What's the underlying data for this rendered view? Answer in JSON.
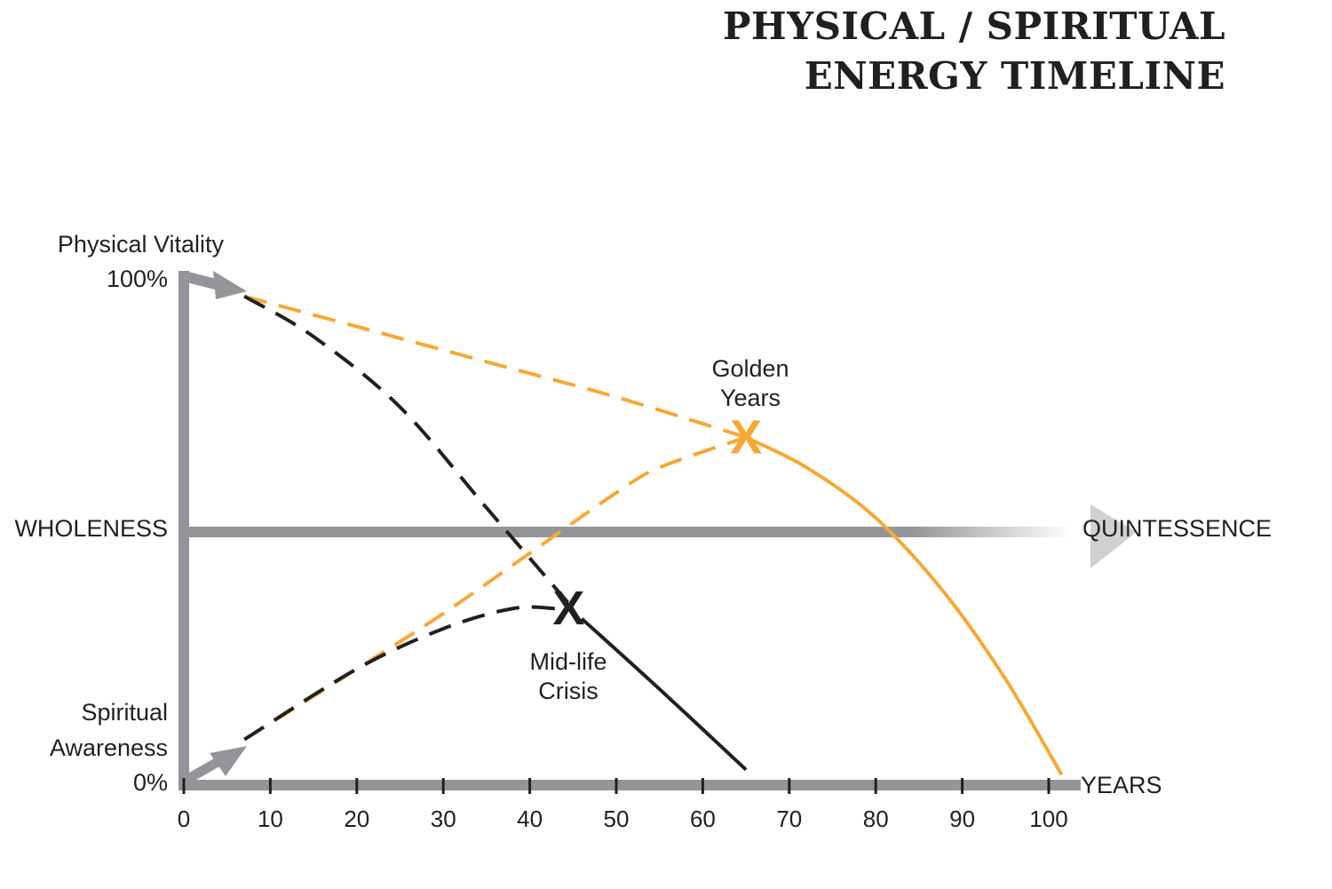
{
  "title_line1": "PHYSICAL / SPIRITUAL",
  "title_line2": "ENERGY TIMELINE",
  "chart_data": {
    "type": "line",
    "title": "PHYSICAL / SPIRITUAL ENERGY TIMELINE",
    "xlabel": "YEARS",
    "xlim": [
      0,
      100
    ],
    "ylim": [
      0,
      100
    ],
    "x_ticks": [
      0,
      10,
      20,
      30,
      40,
      50,
      60,
      70,
      80,
      90,
      100
    ],
    "y_top_label_line1": "Physical Vitality",
    "y_top_label_line2": "100%",
    "y_bottom_label_line1": "Spiritual",
    "y_bottom_label_line2": "Awareness",
    "y_bottom_label_line3": "0%",
    "midline_left_label": "WHOLENESS",
    "midline_right_label": "QUINTESSENCE",
    "midline_y": 50,
    "colors": {
      "axis": "#939598",
      "gold": "#f7a833",
      "dark": "#231f20"
    },
    "series": [
      {
        "name": "Physical vitality (ideal)",
        "color": "#f7a833",
        "style": "dashed",
        "x": [
          7,
          20,
          35,
          50,
          65
        ],
        "y": [
          96,
          90,
          83,
          76,
          68
        ]
      },
      {
        "name": "Golden years decline",
        "color": "#f7a833",
        "style": "solid",
        "x": [
          65,
          72,
          80,
          88,
          95,
          101.5
        ],
        "y": [
          68,
          62,
          52,
          37,
          20,
          1
        ]
      },
      {
        "name": "Spiritual awareness (ideal)",
        "color": "#f7a833",
        "style": "dashed",
        "x": [
          7,
          20,
          30,
          40,
          50,
          55,
          65
        ],
        "y": [
          8,
          22,
          33,
          45,
          57,
          62,
          68
        ]
      },
      {
        "name": "Physical vitality (typical)",
        "color": "#231f20",
        "style": "dashed",
        "x": [
          7,
          15,
          25,
          35,
          45
        ],
        "y": [
          96,
          88,
          74,
          54,
          34
        ]
      },
      {
        "name": "Spiritual awareness (typical)",
        "color": "#231f20",
        "style": "dashed",
        "x": [
          7,
          20,
          30,
          38,
          43
        ],
        "y": [
          8,
          22,
          30,
          34,
          34
        ]
      },
      {
        "name": "Post mid-life decline",
        "color": "#231f20",
        "style": "solid",
        "x": [
          46,
          55,
          65
        ],
        "y": [
          32,
          18,
          2
        ]
      }
    ],
    "annotations": [
      {
        "name": "golden-years",
        "mark": "X",
        "x": 65,
        "y": 68,
        "color": "#f7a833",
        "label_line1": "Golden",
        "label_line2": "Years"
      },
      {
        "name": "mid-life-crisis",
        "mark": "X",
        "x": 44.5,
        "y": 34,
        "color": "#231f20",
        "label_line1": "Mid-life",
        "label_line2": "Crisis"
      }
    ]
  }
}
